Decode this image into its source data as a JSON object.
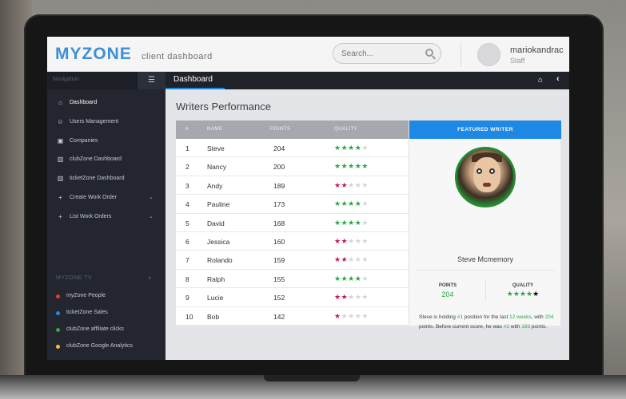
{
  "header": {
    "logo": "MYZONE",
    "subtitle": "client dashboard",
    "search_placeholder": "Search...",
    "user_name": "mariokandrac",
    "user_role": "Staff"
  },
  "sidebar": {
    "title": "Navigation",
    "items": [
      {
        "label": "Dashboard",
        "icon": "home-icon"
      },
      {
        "label": "Users Management",
        "icon": "users-icon"
      },
      {
        "label": "Companies",
        "icon": "briefcase-icon"
      },
      {
        "label": "clubZone Dashboard",
        "icon": "chart-icon"
      },
      {
        "label": "ticketZone Dashboard",
        "icon": "chart-icon"
      },
      {
        "label": "Create Work Order",
        "icon": "plus-icon"
      },
      {
        "label": "List Work Orders",
        "icon": "plus-icon"
      }
    ],
    "tv_title": "MYZONE TV",
    "tv_items": [
      {
        "label": "myZone People",
        "color": "#e53935"
      },
      {
        "label": "ticketZone Sales",
        "color": "#1e88e5"
      },
      {
        "label": "clubZone affiliate clicks",
        "color": "#43a047"
      },
      {
        "label": "clubZone Google Analytics",
        "color": "#fbc02d"
      }
    ]
  },
  "content": {
    "tab": "Dashboard",
    "title": "Writers Performance"
  },
  "table": {
    "columns": [
      "#",
      "NAME",
      "POINTS",
      "QUALITY"
    ],
    "rows": [
      {
        "rank": "1",
        "name": "Steve",
        "points": "204",
        "stars": 4,
        "tone": "green"
      },
      {
        "rank": "2",
        "name": "Nancy",
        "points": "200",
        "stars": 5,
        "tone": "green"
      },
      {
        "rank": "3",
        "name": "Andy",
        "points": "189",
        "stars": 2,
        "tone": "red"
      },
      {
        "rank": "4",
        "name": "Pauline",
        "points": "173",
        "stars": 4,
        "tone": "green"
      },
      {
        "rank": "5",
        "name": "David",
        "points": "168",
        "stars": 4,
        "tone": "green"
      },
      {
        "rank": "6",
        "name": "Jessica",
        "points": "160",
        "stars": 2,
        "tone": "red"
      },
      {
        "rank": "7",
        "name": "Rolando",
        "points": "159",
        "stars": 2,
        "tone": "red"
      },
      {
        "rank": "8",
        "name": "Ralph",
        "points": "155",
        "stars": 4,
        "tone": "green"
      },
      {
        "rank": "9",
        "name": "Lucie",
        "points": "152",
        "stars": 2,
        "tone": "red"
      },
      {
        "rank": "10",
        "name": "Bob",
        "points": "142",
        "stars": 1,
        "tone": "red"
      }
    ]
  },
  "featured": {
    "heading": "FEATURED WRITER",
    "name": "Steve Mcmemory",
    "points_label": "POINTS",
    "points_value": "204",
    "quality_label": "QUALITY",
    "quality_stars": 4,
    "desc": {
      "p1": "Steve is holding ",
      "v1": "#1",
      "p2": " position for the last ",
      "v2": "12 weeks",
      "p3": ", with ",
      "v3": "204",
      "p4": " points. Before current score, he was ",
      "v4": "#2",
      "p5": " with ",
      "v5": "193",
      "p6": " points."
    }
  },
  "colors": {
    "accent": "#1e88e5",
    "good": "#27a844",
    "bad": "#c2185b"
  }
}
